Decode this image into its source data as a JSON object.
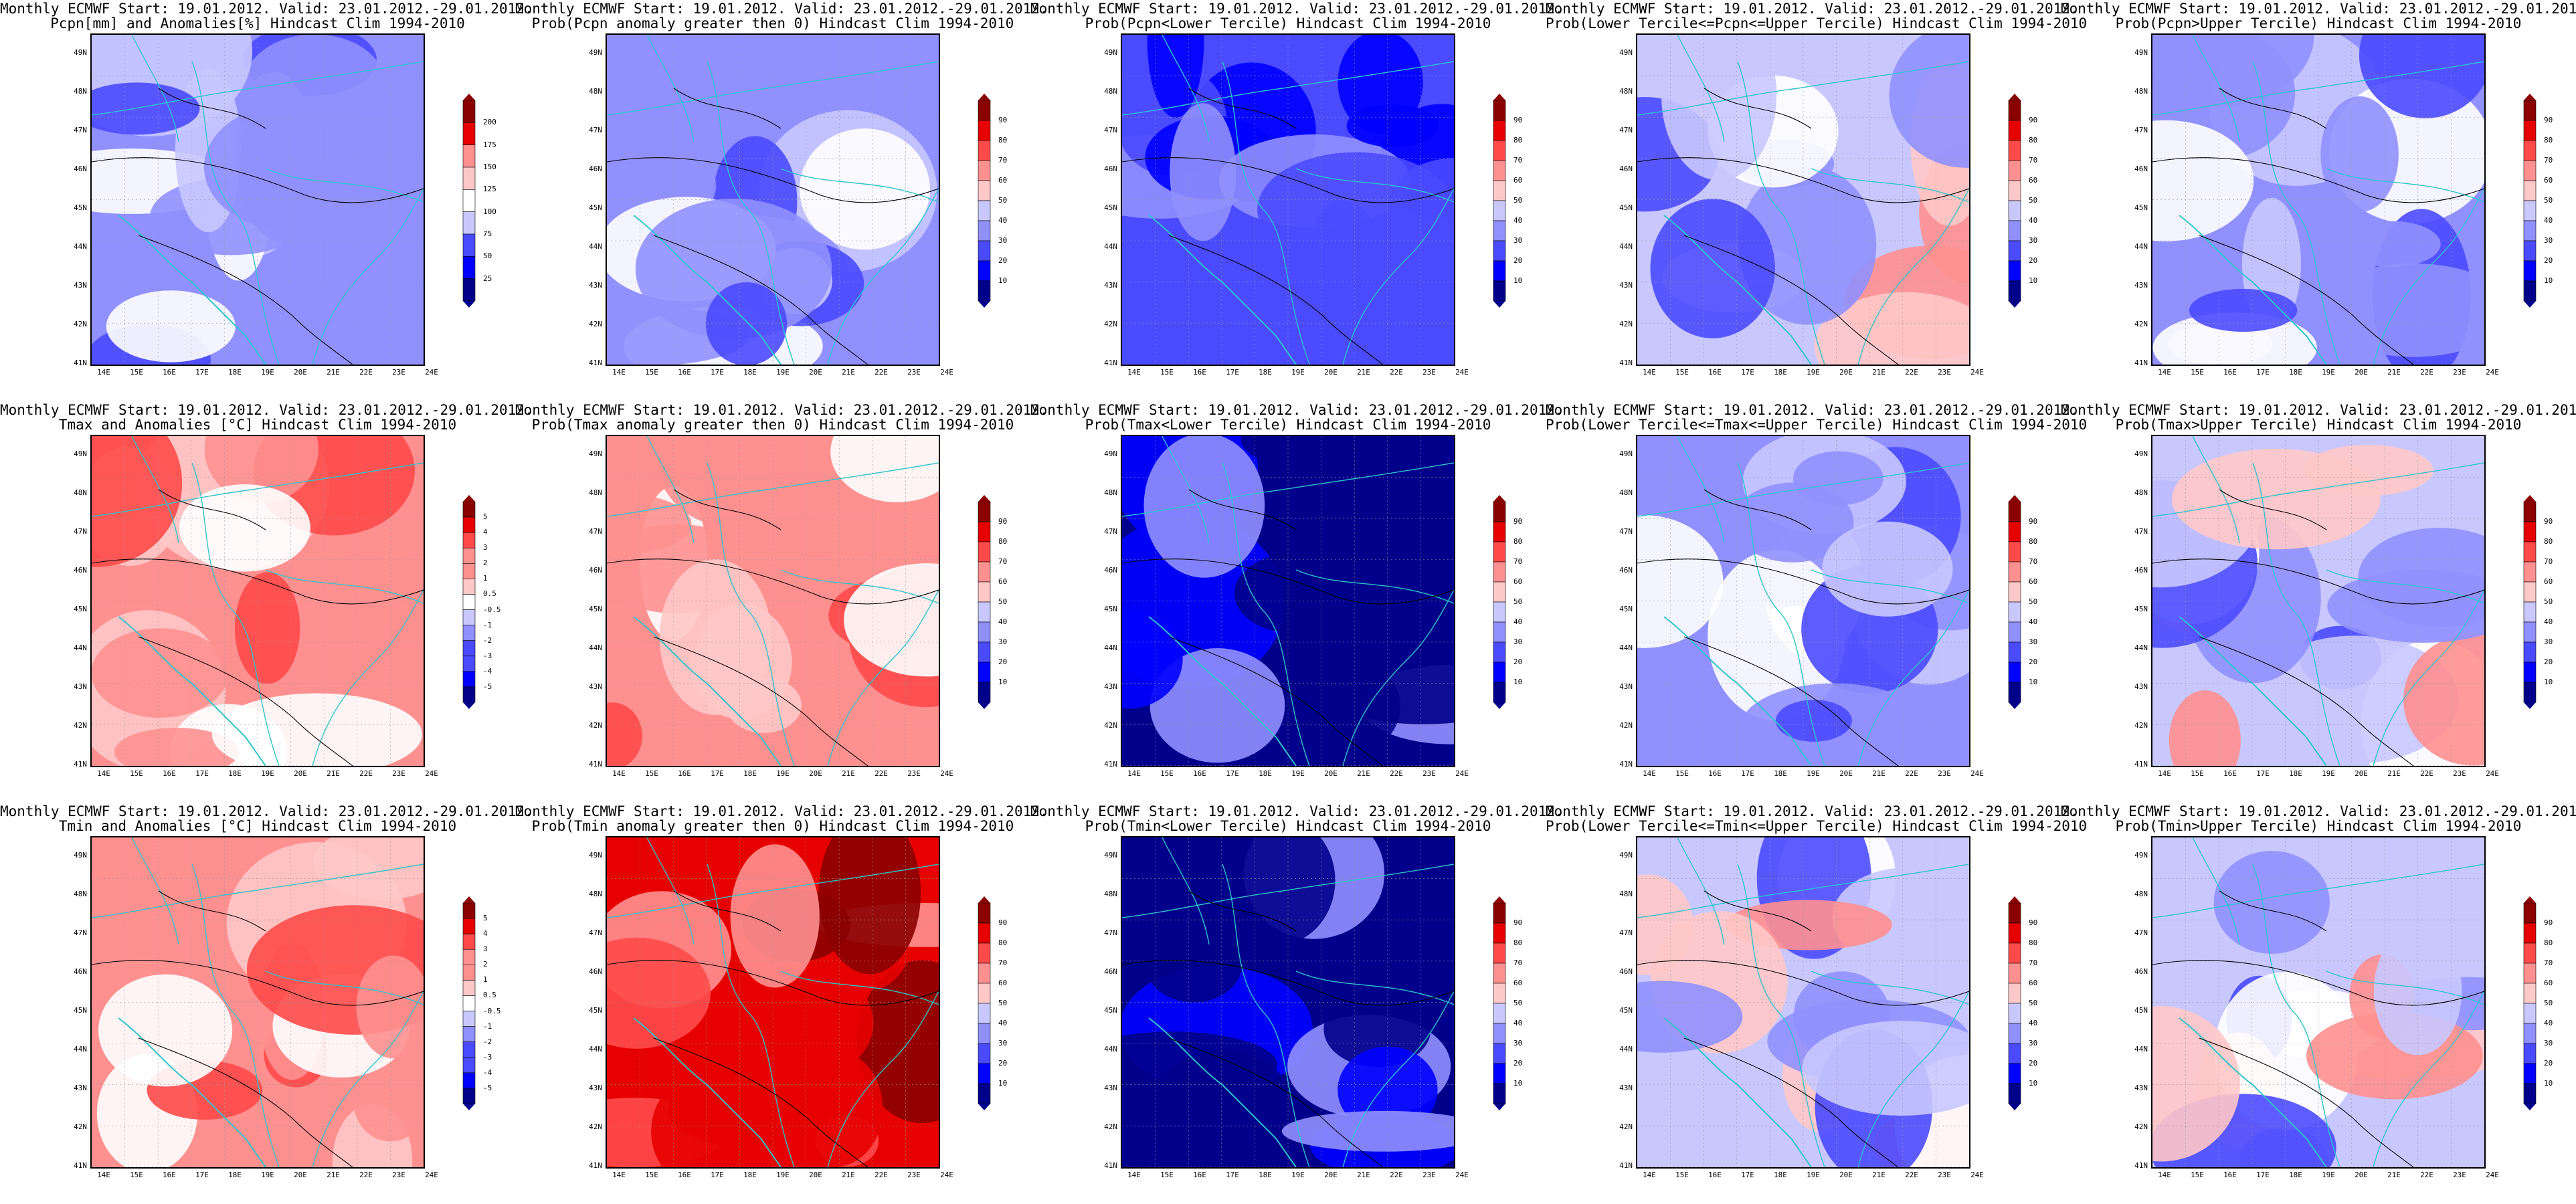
{
  "header_line": "Monthly ECMWF Start: 19.01.2012. Valid: 23.01.2012.-29.01.2012.",
  "lat_labels": [
    "49N",
    "48N",
    "47N",
    "46N",
    "45N",
    "44N",
    "43N",
    "42N",
    "41N"
  ],
  "lon_labels": [
    "14E",
    "15E",
    "16E",
    "17E",
    "18E",
    "19E",
    "20E",
    "21E",
    "22E",
    "23E",
    "24E"
  ],
  "colors": {
    "land": "#ffffff",
    "border": "#2ec4c8",
    "contour": "#000000",
    "scale_blue": [
      "#00008b",
      "#0000ff",
      "#4a4aff",
      "#9090ff",
      "#c8c8ff",
      "#ffffff"
    ],
    "scale_red": [
      "#ffffff",
      "#ffc8c8",
      "#ff9090",
      "#ff4a4a",
      "#e60000",
      "#8b0000"
    ]
  },
  "colorbars": {
    "pcpn": [
      "200",
      "175",
      "150",
      "125",
      "100",
      "75",
      "50",
      "25"
    ],
    "prob": [
      "90",
      "80",
      "70",
      "60",
      "50",
      "40",
      "30",
      "20",
      "10"
    ],
    "temp": [
      "5",
      "4",
      "3",
      "2",
      "1",
      "0.5",
      "-0.5",
      "-1",
      "-2",
      "-3",
      "-4",
      "-5"
    ]
  },
  "rows": [
    {
      "panels": [
        {
          "title": "Pcpn[mm] and Anomalies[%] Hindcast Clim 1994-2010",
          "scale": "pcpn",
          "palette": "bluish"
        },
        {
          "title": "Prob(Pcpn anomaly greater then 0) Hindcast Clim 1994-2010",
          "scale": "prob",
          "palette": "bluish"
        },
        {
          "title": "Prob(Pcpn<Lower Tercile) Hindcast Clim 1994-2010",
          "scale": "prob",
          "palette": "blue"
        },
        {
          "title": "Prob(Lower Tercile<=Pcpn<=Upper Tercile) Hindcast Clim 1994-2010",
          "scale": "prob",
          "palette": "mixed"
        },
        {
          "title": "Prob(Pcpn>Upper Tercile) Hindcast Clim 1994-2010",
          "scale": "prob",
          "palette": "bluish"
        }
      ]
    },
    {
      "panels": [
        {
          "title": "Tmax and Anomalies [°C] Hindcast Clim 1994-2010",
          "scale": "temp",
          "palette": "red"
        },
        {
          "title": "Prob(Tmax anomaly greater then 0) Hindcast Clim 1994-2010",
          "scale": "prob",
          "palette": "red"
        },
        {
          "title": "Prob(Tmax<Lower Tercile) Hindcast Clim 1994-2010",
          "scale": "prob",
          "palette": "darkblue"
        },
        {
          "title": "Prob(Lower Tercile<=Tmax<=Upper Tercile) Hindcast Clim 1994-2010",
          "scale": "prob",
          "palette": "bluish"
        },
        {
          "title": "Prob(Tmax>Upper Tercile) Hindcast Clim 1994-2010",
          "scale": "prob",
          "palette": "mixed"
        }
      ]
    },
    {
      "panels": [
        {
          "title": "Tmin and Anomalies [°C] Hindcast Clim 1994-2010",
          "scale": "temp",
          "palette": "red"
        },
        {
          "title": "Prob(Tmin anomaly greater then 0) Hindcast Clim 1994-2010",
          "scale": "prob",
          "palette": "darkred"
        },
        {
          "title": "Prob(Tmin<Lower Tercile) Hindcast Clim 1994-2010",
          "scale": "prob",
          "palette": "darkblue"
        },
        {
          "title": "Prob(Lower Tercile<=Tmin<=Upper Tercile) Hindcast Clim 1994-2010",
          "scale": "prob",
          "palette": "mixed"
        },
        {
          "title": "Prob(Tmin>Upper Tercile) Hindcast Clim 1994-2010",
          "scale": "prob",
          "palette": "mixed"
        }
      ]
    }
  ]
}
